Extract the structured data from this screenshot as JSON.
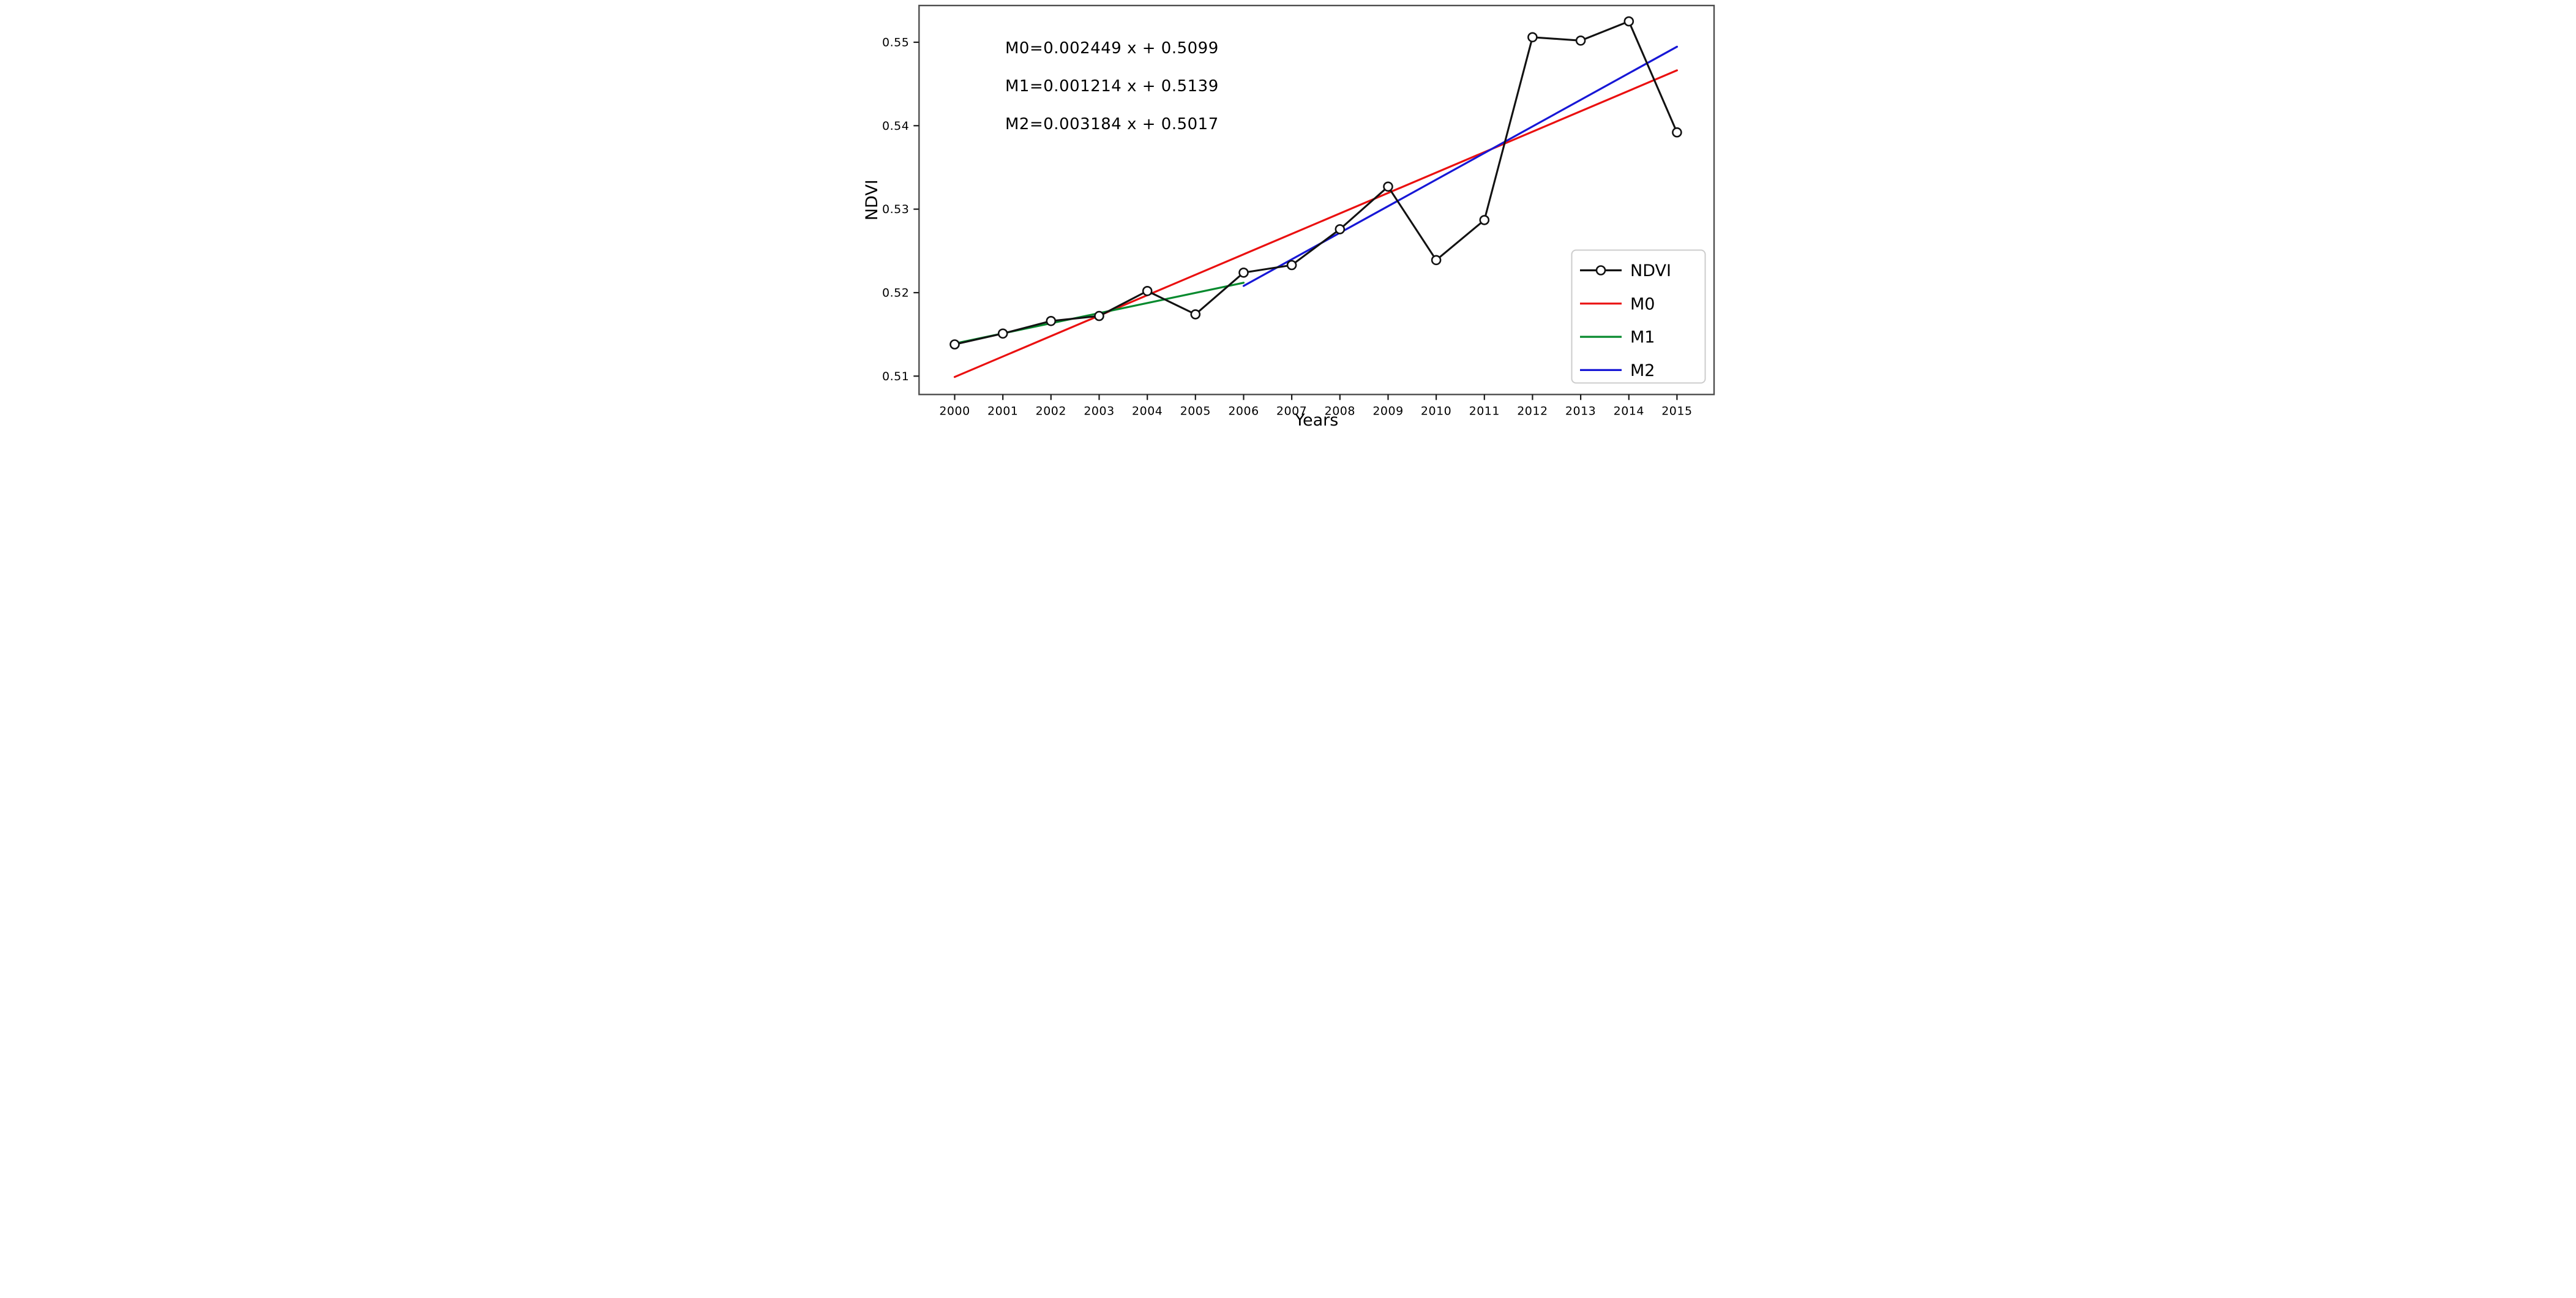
{
  "figure": {
    "background": "#ffffff",
    "annotations": [
      {
        "label": "M0-equation",
        "text": "M0=0.002449 x + 0.5099"
      },
      {
        "label": "M1-equation",
        "text": "M1=0.001214 x + 0.5139"
      },
      {
        "label": "M2-equation",
        "text": "M2=0.003184 x + 0.5017"
      }
    ]
  },
  "chart_data": {
    "type": "line",
    "title": "",
    "xlabel": "Years",
    "ylabel": "NDVI",
    "x": [
      2000,
      2001,
      2002,
      2003,
      2004,
      2005,
      2006,
      2007,
      2008,
      2009,
      2010,
      2011,
      2012,
      2013,
      2014,
      2015
    ],
    "x_tick_labels": [
      "2000",
      "2001",
      "2002",
      "2003",
      "2004",
      "2005",
      "2006",
      "2007",
      "2008",
      "2009",
      "2010",
      "2011",
      "2012",
      "2013",
      "2014",
      "2015"
    ],
    "y_ticks": [
      0.51,
      0.52,
      0.53,
      0.54,
      0.55
    ],
    "y_tick_labels": [
      "0.51",
      "0.52",
      "0.53",
      "0.54",
      "0.55"
    ],
    "xlim": [
      1999.26,
      2015.77
    ],
    "ylim": [
      0.5078,
      0.5544
    ],
    "grid": false,
    "legend_position": "lower right",
    "axis_colors": {
      "spine": "#4d4d4d",
      "tick": "#1a1a1a",
      "text": "#000000"
    },
    "series": [
      {
        "name": "NDVI",
        "kind": "data",
        "color": "#121212",
        "marker": "open-circle",
        "marker_fill": "#ffffff",
        "values": [
          0.5138,
          0.5151,
          0.5166,
          0.5172,
          0.5202,
          0.5174,
          0.5224,
          0.5233,
          0.5276,
          0.5327,
          0.5239,
          0.5287,
          0.5506,
          0.5502,
          0.5525,
          0.5392
        ]
      },
      {
        "name": "M0",
        "kind": "trend",
        "color": "#ea1010",
        "slope": 0.002449,
        "intercept": 0.5099,
        "x_range": [
          2000,
          2015
        ],
        "equation": "M0=0.002449 x + 0.5099"
      },
      {
        "name": "M1",
        "kind": "trend",
        "color": "#078a2e",
        "slope": 0.001214,
        "intercept": 0.5139,
        "x_range": [
          2000,
          2006
        ],
        "equation": "M1=0.001214 x + 0.5139"
      },
      {
        "name": "M2",
        "kind": "trend",
        "color": "#1717d6",
        "slope": 0.003184,
        "intercept": 0.5017,
        "x_range": [
          2006,
          2015
        ],
        "equation": "M2=0.003184 x + 0.5017"
      }
    ]
  }
}
